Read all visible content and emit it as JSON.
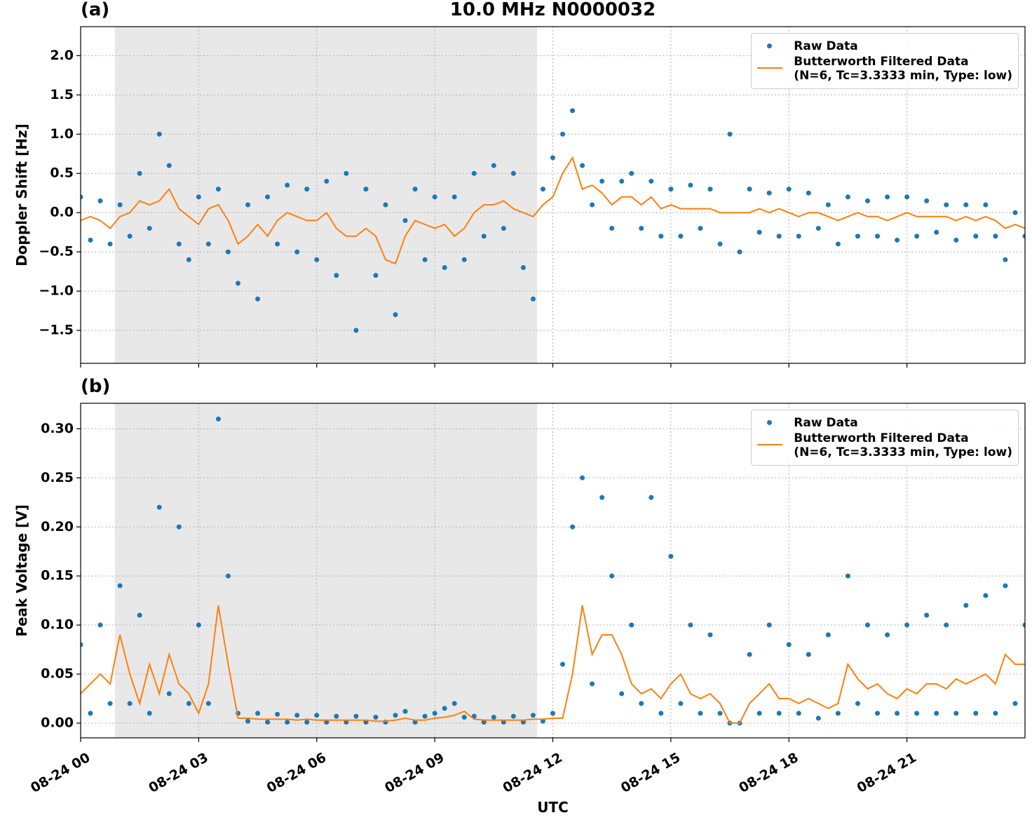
{
  "chart_data": [
    {
      "type": "scatter_line",
      "title": "10.0 MHz N0000032",
      "panel_label": "(a)",
      "ylabel": "Doppler Shift [Hz]",
      "x": [
        0,
        0.25,
        0.5,
        0.75,
        1,
        1.25,
        1.5,
        1.75,
        2,
        2.25,
        2.5,
        2.75,
        3,
        3.25,
        3.5,
        3.75,
        4,
        4.25,
        4.5,
        4.75,
        5,
        5.25,
        5.5,
        5.75,
        6,
        6.25,
        6.5,
        6.75,
        7,
        7.25,
        7.5,
        7.75,
        8,
        8.25,
        8.5,
        8.75,
        9,
        9.25,
        9.5,
        9.75,
        10,
        10.25,
        10.5,
        10.75,
        11,
        11.25,
        11.5,
        11.75,
        12,
        12.25,
        12.5,
        12.75,
        13,
        13.25,
        13.5,
        13.75,
        14,
        14.25,
        14.5,
        14.75,
        15,
        15.25,
        15.5,
        15.75,
        16,
        16.25,
        16.5,
        16.75,
        17,
        17.25,
        17.5,
        17.75,
        18,
        18.25,
        18.5,
        18.75,
        19,
        19.25,
        19.5,
        19.75,
        20,
        20.25,
        20.5,
        20.75,
        21,
        21.25,
        21.5,
        21.75,
        22,
        22.25,
        22.5,
        22.75,
        23,
        23.25,
        23.5,
        23.75,
        24
      ],
      "series": [
        {
          "name": "Raw Data",
          "kind": "scatter",
          "color": "#1f77b4",
          "values": [
            0.2,
            -0.35,
            0.15,
            -0.4,
            0.1,
            -0.3,
            0.5,
            -0.2,
            1.0,
            0.6,
            -0.4,
            -0.6,
            0.2,
            -0.4,
            0.3,
            -0.5,
            -0.9,
            0.1,
            -1.1,
            0.2,
            -0.4,
            0.35,
            -0.5,
            0.3,
            -0.6,
            0.4,
            -0.8,
            0.5,
            -1.5,
            0.3,
            -0.8,
            0.1,
            -1.3,
            -0.1,
            0.3,
            -0.6,
            0.2,
            -0.7,
            0.2,
            -0.6,
            0.5,
            -0.3,
            0.6,
            -0.2,
            0.5,
            -0.7,
            -1.1,
            0.3,
            0.7,
            1.0,
            1.3,
            0.6,
            0.1,
            0.4,
            -0.2,
            0.4,
            0.5,
            -0.2,
            0.4,
            -0.3,
            0.3,
            -0.3,
            0.35,
            -0.2,
            0.3,
            -0.4,
            1.0,
            -0.5,
            0.3,
            -0.25,
            0.25,
            -0.3,
            0.3,
            -0.3,
            0.25,
            -0.2,
            0.1,
            -0.4,
            0.2,
            -0.3,
            0.15,
            -0.3,
            0.2,
            -0.35,
            0.2,
            -0.3,
            0.15,
            -0.25,
            0.1,
            -0.35,
            0.1,
            -0.3,
            0.1,
            -0.3,
            -0.6,
            0.0,
            -0.3
          ]
        },
        {
          "name": "Butterworth Filtered Data\n(N=6, Tc=3.3333 min, Type: low)",
          "kind": "line",
          "color": "#ff7f0e",
          "values": [
            -0.1,
            -0.05,
            -0.1,
            -0.2,
            -0.05,
            0.0,
            0.15,
            0.1,
            0.15,
            0.3,
            0.05,
            -0.05,
            -0.15,
            0.05,
            0.1,
            -0.1,
            -0.4,
            -0.3,
            -0.15,
            -0.3,
            -0.1,
            0.0,
            -0.05,
            -0.1,
            -0.1,
            0.0,
            -0.2,
            -0.3,
            -0.3,
            -0.2,
            -0.3,
            -0.6,
            -0.65,
            -0.3,
            -0.1,
            -0.15,
            -0.2,
            -0.15,
            -0.3,
            -0.2,
            0.0,
            0.1,
            0.1,
            0.15,
            0.05,
            0.0,
            -0.05,
            0.1,
            0.2,
            0.5,
            0.7,
            0.3,
            0.35,
            0.25,
            0.1,
            0.2,
            0.2,
            0.1,
            0.2,
            0.05,
            0.1,
            0.05,
            0.05,
            0.05,
            0.05,
            0.0,
            0.0,
            0.0,
            0.0,
            0.05,
            0.0,
            0.05,
            0.0,
            -0.05,
            0.0,
            0.0,
            -0.05,
            -0.1,
            -0.05,
            0.0,
            -0.05,
            -0.05,
            -0.1,
            -0.05,
            0.0,
            -0.05,
            -0.05,
            -0.05,
            -0.05,
            -0.1,
            -0.05,
            -0.1,
            -0.05,
            -0.1,
            -0.2,
            -0.15,
            -0.2
          ]
        }
      ],
      "xlim": [
        0,
        24
      ],
      "xticks": [
        0,
        3,
        6,
        9,
        12,
        15,
        18,
        21
      ],
      "ylim": [
        -1.92,
        2.37
      ],
      "yticks": [
        {
          "value": -1.5,
          "label": "−1.5"
        },
        {
          "value": -1.0,
          "label": "−1.0"
        },
        {
          "value": -0.5,
          "label": "−0.5"
        },
        {
          "value": 0,
          "label": "0.0"
        },
        {
          "value": 0.5,
          "label": "0.5"
        },
        {
          "value": 1.0,
          "label": "1.0"
        },
        {
          "value": 1.5,
          "label": "1.5"
        },
        {
          "value": 2.0,
          "label": "2.0"
        }
      ],
      "shaded_span": [
        0.87,
        11.6
      ],
      "grid": true,
      "legend": "upper right"
    },
    {
      "type": "scatter_line",
      "panel_label": "(b)",
      "ylabel": "Peak Voltage [V]",
      "xlabel": "UTC",
      "x": [
        0,
        0.25,
        0.5,
        0.75,
        1,
        1.25,
        1.5,
        1.75,
        2,
        2.25,
        2.5,
        2.75,
        3,
        3.25,
        3.5,
        3.75,
        4,
        4.25,
        4.5,
        4.75,
        5,
        5.25,
        5.5,
        5.75,
        6,
        6.25,
        6.5,
        6.75,
        7,
        7.25,
        7.5,
        7.75,
        8,
        8.25,
        8.5,
        8.75,
        9,
        9.25,
        9.5,
        9.75,
        10,
        10.25,
        10.5,
        10.75,
        11,
        11.25,
        11.5,
        11.75,
        12,
        12.25,
        12.5,
        12.75,
        13,
        13.25,
        13.5,
        13.75,
        14,
        14.25,
        14.5,
        14.75,
        15,
        15.25,
        15.5,
        15.75,
        16,
        16.25,
        16.5,
        16.75,
        17,
        17.25,
        17.5,
        17.75,
        18,
        18.25,
        18.5,
        18.75,
        19,
        19.25,
        19.5,
        19.75,
        20,
        20.25,
        20.5,
        20.75,
        21,
        21.25,
        21.5,
        21.75,
        22,
        22.25,
        22.5,
        22.75,
        23,
        23.25,
        23.5,
        23.75,
        24
      ],
      "series": [
        {
          "name": "Raw Data",
          "kind": "scatter",
          "color": "#1f77b4",
          "values": [
            0.08,
            0.01,
            0.1,
            0.02,
            0.14,
            0.02,
            0.11,
            0.01,
            0.22,
            0.03,
            0.2,
            0.02,
            0.1,
            0.02,
            0.31,
            0.15,
            0.01,
            0.002,
            0.01,
            0.001,
            0.009,
            0.001,
            0.008,
            0.001,
            0.008,
            0.001,
            0.007,
            0.001,
            0.007,
            0.001,
            0.006,
            0.001,
            0.008,
            0.012,
            0.001,
            0.007,
            0.01,
            0.015,
            0.02,
            0.006,
            0.007,
            0.001,
            0.006,
            0.001,
            0.007,
            0.001,
            0.008,
            0.002,
            0.01,
            0.06,
            0.2,
            0.25,
            0.04,
            0.23,
            0.15,
            0.03,
            0.1,
            0.02,
            0.23,
            0.01,
            0.17,
            0.02,
            0.1,
            0.01,
            0.09,
            0.01,
            0.0,
            0.0,
            0.07,
            0.01,
            0.1,
            0.01,
            0.08,
            0.01,
            0.07,
            0.005,
            0.09,
            0.01,
            0.15,
            0.02,
            0.1,
            0.01,
            0.09,
            0.01,
            0.1,
            0.01,
            0.11,
            0.01,
            0.1,
            0.01,
            0.12,
            0.01,
            0.13,
            0.01,
            0.14,
            0.02,
            0.1
          ]
        },
        {
          "name": "Butterworth Filtered Data\n(N=6, Tc=3.3333 min, Type: low)",
          "kind": "line",
          "color": "#ff7f0e",
          "values": [
            0.03,
            0.04,
            0.05,
            0.04,
            0.09,
            0.05,
            0.02,
            0.06,
            0.03,
            0.07,
            0.04,
            0.03,
            0.01,
            0.04,
            0.12,
            0.06,
            0.005,
            0.005,
            0.004,
            0.004,
            0.004,
            0.004,
            0.003,
            0.004,
            0.003,
            0.003,
            0.003,
            0.003,
            0.003,
            0.003,
            0.002,
            0.002,
            0.003,
            0.005,
            0.003,
            0.003,
            0.005,
            0.006,
            0.008,
            0.012,
            0.004,
            0.003,
            0.003,
            0.003,
            0.003,
            0.003,
            0.004,
            0.004,
            0.005,
            0.005,
            0.05,
            0.12,
            0.07,
            0.09,
            0.09,
            0.07,
            0.04,
            0.03,
            0.035,
            0.025,
            0.04,
            0.05,
            0.03,
            0.025,
            0.03,
            0.02,
            0.0,
            0.0,
            0.02,
            0.03,
            0.04,
            0.025,
            0.025,
            0.02,
            0.025,
            0.02,
            0.015,
            0.02,
            0.06,
            0.045,
            0.035,
            0.04,
            0.03,
            0.025,
            0.035,
            0.03,
            0.04,
            0.04,
            0.035,
            0.045,
            0.04,
            0.045,
            0.05,
            0.04,
            0.07,
            0.06,
            0.06
          ]
        }
      ],
      "xlim": [
        0,
        24
      ],
      "xticks": [
        {
          "value": 0,
          "label": "08-24 00"
        },
        {
          "value": 3,
          "label": "08-24 03"
        },
        {
          "value": 6,
          "label": "08-24 06"
        },
        {
          "value": 9,
          "label": "08-24 09"
        },
        {
          "value": 12,
          "label": "08-24 12"
        },
        {
          "value": 15,
          "label": "08-24 15"
        },
        {
          "value": 18,
          "label": "08-24 18"
        },
        {
          "value": 21,
          "label": "08-24 21"
        }
      ],
      "ylim": [
        -0.015,
        0.326
      ],
      "yticks": [
        {
          "value": 0,
          "label": "0.00"
        },
        {
          "value": 0.05,
          "label": "0.05"
        },
        {
          "value": 0.1,
          "label": "0.10"
        },
        {
          "value": 0.15,
          "label": "0.15"
        },
        {
          "value": 0.2,
          "label": "0.20"
        },
        {
          "value": 0.25,
          "label": "0.25"
        },
        {
          "value": 0.3,
          "label": "0.30"
        }
      ],
      "shaded_span": [
        0.87,
        11.6
      ],
      "grid": true,
      "legend": "upper right"
    }
  ]
}
